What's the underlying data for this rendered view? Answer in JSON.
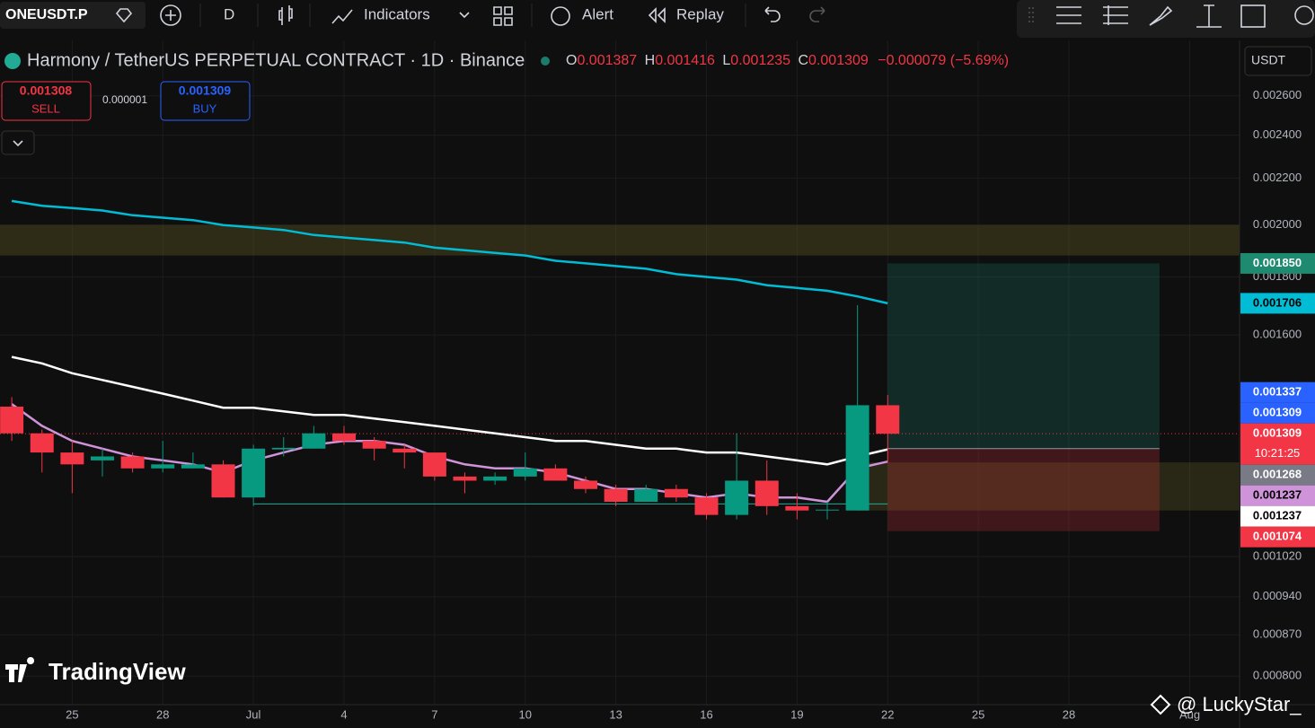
{
  "toolbar": {
    "symbol": "ONEUSDT.P",
    "interval": "D",
    "indicators": "Indicators",
    "alert": "Alert",
    "replay": "Replay"
  },
  "legend": {
    "title": "Harmony / TetherUS PERPETUAL CONTRACT · 1D · Binance",
    "o": "O",
    "h": "H",
    "l": "L",
    "c": "C",
    "change": "−0.000079 (−5.69%)"
  },
  "trade": {
    "sell_price": "0.001308",
    "sell": "SELL",
    "spread": "0.000001",
    "buy_price": "0.001309",
    "buy": "BUY"
  },
  "currency": "USDT",
  "logo": "TradingView",
  "watermark": "@ LuckyStar_",
  "chart_data": {
    "type": "candlestick",
    "categories": [
      null,
      null,
      "25",
      null,
      null,
      "28",
      null,
      null,
      "Jul",
      null,
      null,
      "4",
      null,
      null,
      "7",
      null,
      null,
      "10",
      null,
      null,
      "13",
      null,
      null,
      "16",
      null,
      null,
      "19",
      null,
      null,
      "22"
    ],
    "open": [
      0.001383,
      0.00131,
      0.00126,
      0.00124,
      0.00125,
      0.00122,
      0.00122,
      0.00123,
      0.00115,
      0.001268,
      0.00127,
      0.00131,
      0.00129,
      0.00127,
      0.00126,
      0.0012,
      0.00119,
      0.0012,
      0.00122,
      0.00119,
      0.00117,
      0.00114,
      0.00117,
      0.00115,
      0.00111,
      0.00119,
      0.00113,
      0.00112,
      0.00112,
      0.001387
    ],
    "high": [
      0.00141,
      0.00132,
      0.00129,
      0.00127,
      0.00126,
      0.00129,
      0.00126,
      0.00124,
      0.00128,
      0.0013,
      0.00133,
      0.00133,
      0.0013,
      0.00128,
      0.00126,
      0.00121,
      0.00121,
      0.00126,
      0.00123,
      0.0012,
      0.00118,
      0.00118,
      0.00118,
      0.00116,
      0.00131,
      0.00124,
      0.00116,
      0.00114,
      0.0017,
      0.001416
    ],
    "low": [
      0.00129,
      0.00121,
      0.00116,
      0.0012,
      0.00121,
      0.00121,
      0.00122,
      0.00115,
      0.00113,
      0.00125,
      0.00127,
      0.00128,
      0.00124,
      0.00122,
      0.00119,
      0.00116,
      0.00118,
      0.00119,
      0.00119,
      0.00116,
      0.00113,
      0.00114,
      0.00114,
      0.0011,
      0.0011,
      0.00111,
      0.0011,
      0.0011,
      0.00112,
      0.001235
    ],
    "close": [
      0.00131,
      0.00126,
      0.00123,
      0.00125,
      0.00122,
      0.00123,
      0.00123,
      0.00115,
      0.00127,
      0.001272,
      0.00131,
      0.00129,
      0.00127,
      0.00126,
      0.0012,
      0.00119,
      0.0012,
      0.00122,
      0.00119,
      0.00117,
      0.00114,
      0.00117,
      0.00115,
      0.00111,
      0.00119,
      0.00113,
      0.00112,
      0.001122,
      0.001387,
      0.001309
    ],
    "up_color": "#089981",
    "down_color": "#f23645",
    "overlays": [
      {
        "color": "#00bcd4",
        "values": [
          0.0021,
          0.00208,
          0.00207,
          0.00206,
          0.00204,
          0.00203,
          0.00202,
          0.002,
          0.00199,
          0.00198,
          0.00196,
          0.00195,
          0.00194,
          0.00193,
          0.00191,
          0.0019,
          0.00189,
          0.00188,
          0.00186,
          0.00185,
          0.00184,
          0.00183,
          0.00181,
          0.0018,
          0.00179,
          0.00177,
          0.00176,
          0.00175,
          0.00173,
          0.001706
        ]
      },
      {
        "color": "#ffffff",
        "values": [
          0.00153,
          0.00151,
          0.00148,
          0.00146,
          0.00144,
          0.00142,
          0.0014,
          0.00138,
          0.00138,
          0.00137,
          0.00136,
          0.00136,
          0.00135,
          0.00134,
          0.00133,
          0.00132,
          0.00131,
          0.0013,
          0.00129,
          0.00129,
          0.00128,
          0.00127,
          0.00127,
          0.00126,
          0.00126,
          0.00125,
          0.00124,
          0.00123,
          0.00125,
          0.001268
        ]
      },
      {
        "color": "#ce93d8",
        "values": [
          0.00139,
          0.00133,
          0.00129,
          0.00127,
          0.00125,
          0.00124,
          0.00123,
          0.00121,
          0.00124,
          0.00126,
          0.00128,
          0.00129,
          0.00129,
          0.00128,
          0.00125,
          0.00123,
          0.00122,
          0.00122,
          0.00121,
          0.00119,
          0.00117,
          0.00117,
          0.00116,
          0.00115,
          0.00116,
          0.00115,
          0.00115,
          0.00114,
          0.00122,
          0.001237
        ]
      }
    ],
    "zones": [
      {
        "from": 0.00188,
        "to": 0.002,
        "color": "rgba(120,110,40,0.3)"
      },
      {
        "from": 0.00112,
        "to": 0.001235,
        "start": 28,
        "color": "rgba(120,110,40,0.25)"
      }
    ],
    "position": {
      "entry": 0.00127,
      "target": 0.00185,
      "stop": 0.001074,
      "start": 29,
      "end": 38,
      "target_color": "rgba(34,171,148,0.18)",
      "stop_color": "rgba(242,54,69,0.22)"
    },
    "hline": {
      "value": 0.001135,
      "start": 8,
      "end": 29,
      "color": "#22ab94"
    },
    "log": true,
    "grid": true,
    "xlim": [
      -0.39,
      40.65
    ],
    "xticks": [
      {
        "value": 32,
        "label": "25"
      },
      {
        "value": 35,
        "label": "28"
      },
      {
        "value": 39,
        "label": "Aug"
      }
    ],
    "ylim": [
      0.000755,
      0.00291
    ],
    "yticks": [
      {
        "value": 0.0026,
        "label": "0.002600"
      },
      {
        "value": 0.0024,
        "label": "0.002400"
      },
      {
        "value": 0.0022,
        "label": "0.002200"
      },
      {
        "value": 0.002,
        "label": "0.002000"
      },
      {
        "value": 0.0018,
        "label": "0.001800"
      },
      {
        "value": 0.0016,
        "label": "0.001600"
      },
      {
        "value": 0.00102,
        "label": "0.001020"
      },
      {
        "value": 0.00094,
        "label": "0.000940"
      },
      {
        "value": 0.00087,
        "label": "0.000870"
      },
      {
        "value": 0.0008,
        "label": "0.000800"
      }
    ],
    "price_labels": [
      {
        "value": 0.00185,
        "label": "0.001850",
        "color": "#1e8a70",
        "text_color": "#ffffff"
      },
      {
        "value": 0.001706,
        "label": "0.001706",
        "color": "#00bcd4",
        "text_color": "#000000"
      },
      {
        "value": 0.001337,
        "label": "0.001337",
        "color": "#2962ff",
        "text_color": "#ffffff"
      },
      {
        "value": 0.001309,
        "label": "0.001309",
        "color": "#2962ff",
        "text_color": "#ffffff"
      },
      {
        "value": 0.001309,
        "label": "0.001309",
        "color": "#f23645",
        "text_color": "#ffffff",
        "countdown": "10:21:25"
      },
      {
        "value": 0.001268,
        "label": "0.001268",
        "color": "#787b86",
        "text_color": "#ffffff"
      },
      {
        "value": 0.001237,
        "label": "0.001237",
        "color": "#ce93d8",
        "text_color": "#000000"
      },
      {
        "value": 0.001237,
        "label": "0.001237",
        "color": "#ffffff",
        "text_color": "#000000"
      },
      {
        "value": 0.001074,
        "label": "0.001074",
        "color": "#f23645",
        "text_color": "#ffffff"
      }
    ]
  }
}
